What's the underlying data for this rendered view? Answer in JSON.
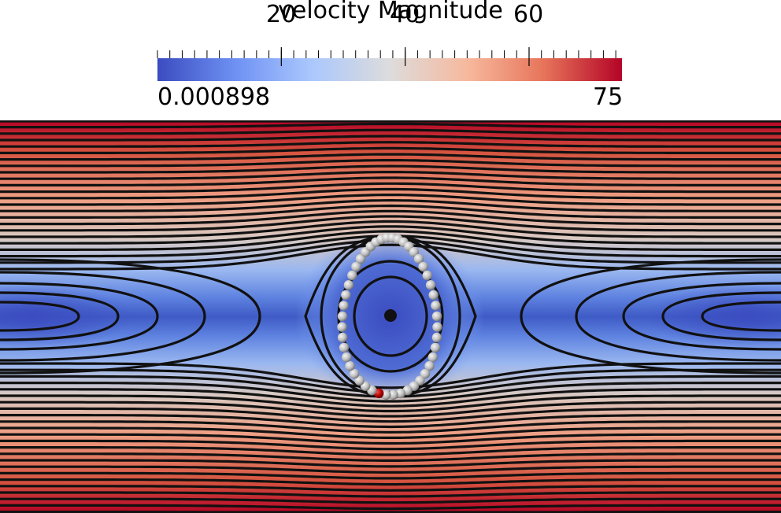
{
  "legend": {
    "title": "velocity Magnitude",
    "range_min": "0.000898",
    "range_max": "75",
    "major_ticks": [
      "20",
      "40",
      "60"
    ],
    "min_value": 0.000898,
    "max_value": 75,
    "colormap": [
      "#3b4cc0",
      "#6f92f3",
      "#aac7fd",
      "#dddcdc",
      "#f7b89c",
      "#e7755b",
      "#b40426"
    ]
  },
  "scene": {
    "field_colormap_min_color": "#3b4cc0",
    "field_colormap_max_color": "#b40426",
    "streamline_color": "#111111",
    "particle_color": "#bfbfbf",
    "highlight_particle_color": "#b30000",
    "particle_count": 46,
    "center_marker_color": "#111111"
  }
}
